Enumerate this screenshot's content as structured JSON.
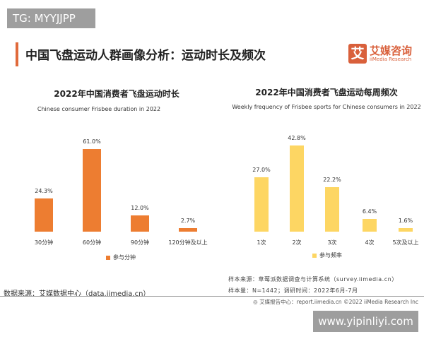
{
  "watermark_top": "TG: MYYJJPP",
  "header": {
    "title": "中国飞盘运动人群画像分析：运动时长及频次",
    "logo_mark": "艾",
    "logo_cn": "艾媒咨询",
    "logo_en": "iiMedia Research"
  },
  "chart_data": [
    {
      "type": "bar",
      "title": "2022年中国消费者飞盘运动时长",
      "subtitle": "Chinese consumer Frisbee duration in 2022",
      "categories": [
        "30分钟",
        "60分钟",
        "90分钟",
        "120分钟及以上"
      ],
      "series": [
        {
          "name": "参与分钟",
          "values": [
            24.3,
            61.0,
            12.0,
            2.7
          ],
          "labels": [
            "24.3%",
            "61.0%",
            "12.0%",
            "2.7%"
          ],
          "color": "#ed7d31"
        }
      ],
      "grid": false,
      "legend": "bottom"
    },
    {
      "type": "bar",
      "title": "2022年中国消费者飞盘运动每周频次",
      "subtitle": "Weekly frequency of Frisbee sports for Chinese consumers in 2022",
      "categories": [
        "1次",
        "2次",
        "3次",
        "4次",
        "5次及以上"
      ],
      "series": [
        {
          "name": "参与频率",
          "values": [
            27.0,
            42.8,
            22.2,
            6.4,
            1.6
          ],
          "labels": [
            "27.0%",
            "42.8%",
            "22.2%",
            "6.4%",
            "1.6%"
          ],
          "color": "#fdd663"
        }
      ],
      "grid": false,
      "legend": "bottom"
    }
  ],
  "notes": {
    "sample_source": "样本来源：草莓派数据调查与计算系统（survey.iimedia.cn）",
    "sample_size": "样本量：N=1442；调研时间：2022年6月-7月",
    "data_source": "数据来源：艾媒数据中心（data.iimedia.cn）"
  },
  "footer": "◎ 艾媒报告中心：report.iimedia.cn   ©2022 iiMedia Research Inc",
  "watermark_bottom": "www.yipinliyi.com"
}
